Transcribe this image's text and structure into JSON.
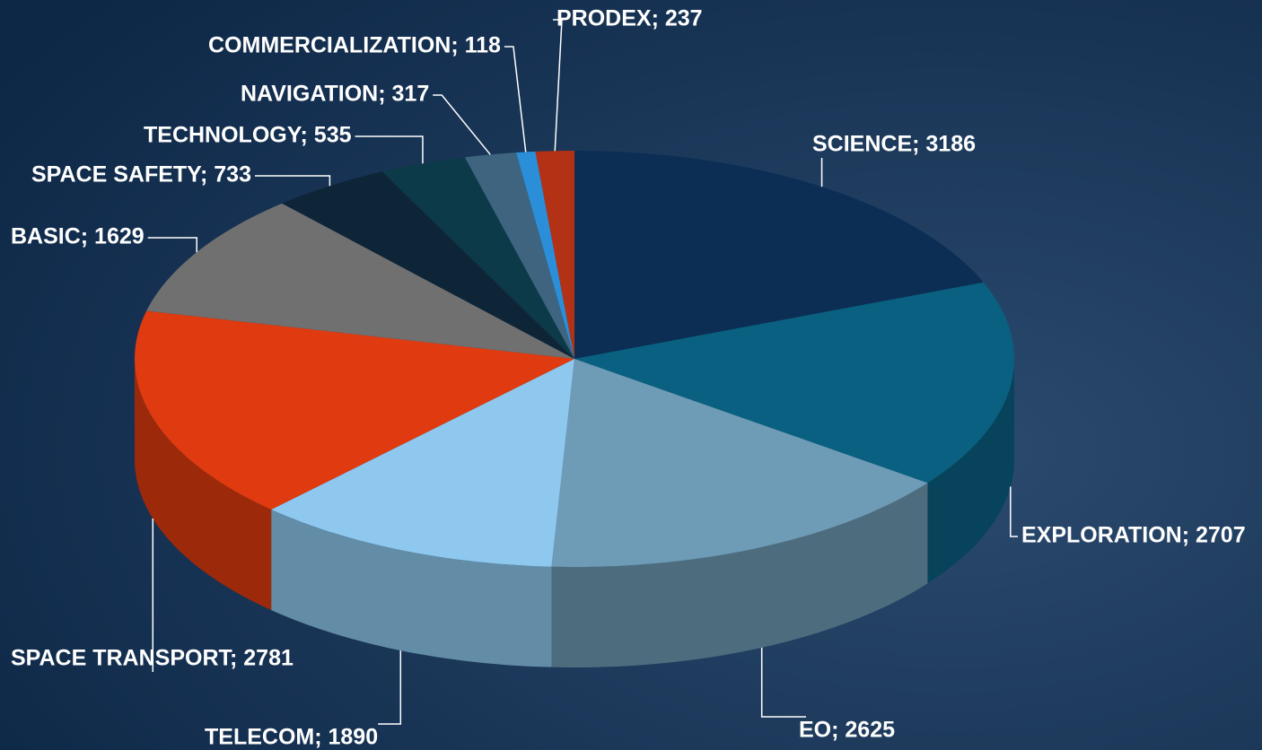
{
  "chart_data": {
    "type": "pie3d",
    "value_labels": [
      "SCIENCE; 3186",
      "EXPLORATION; 2707",
      "EO; 2625",
      "TELECOM; 1890",
      "SPACE TRANSPORT; 2781",
      "BASIC; 1629",
      "SPACE SAFETY; 733",
      "TECHNOLOGY; 535",
      "NAVIGATION; 317",
      "COMMERCIALIZATION; 118",
      "PRODEX; 237"
    ],
    "values": [
      3186,
      2707,
      2625,
      1890,
      2781,
      1629,
      733,
      535,
      317,
      118,
      237
    ],
    "colors": [
      "#0c2e55",
      "#0a6080",
      "#6e9bb5",
      "#8ec8ef",
      "#e03a10",
      "#707070",
      "#0e2538",
      "#0d3a48",
      "#3e6480",
      "#2a8fd8",
      "#b33215"
    ]
  }
}
